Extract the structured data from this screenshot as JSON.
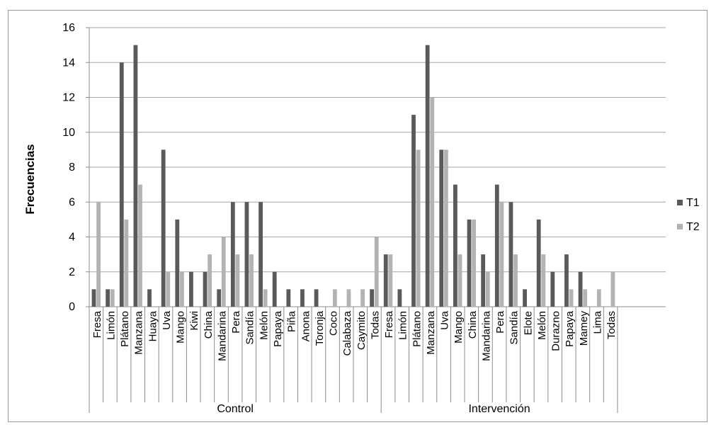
{
  "chart_data": {
    "type": "bar",
    "title": "",
    "xlabel": "",
    "ylabel": "Frecuencias",
    "ylim": [
      0,
      16
    ],
    "yticks": [
      0,
      2,
      4,
      6,
      8,
      10,
      12,
      14,
      16
    ],
    "grid": true,
    "legend_position": "right",
    "colors": {
      "T1": "#5a5a5a",
      "T2": "#b3b3b3"
    },
    "groups": [
      {
        "name": "Control",
        "categories": [
          "Fresa",
          "Limón",
          "Plátano",
          "Manzana",
          "Huaya",
          "Uva",
          "Mango",
          "Kiwi",
          "China",
          "Mandarina",
          "Pera",
          "Sandía",
          "Melón",
          "Papaya",
          "Piña",
          "Anona",
          "Toronja",
          "Coco",
          "Calabaza",
          "Caymito",
          "Todas"
        ],
        "series": [
          {
            "name": "T1",
            "values": [
              1,
              1,
              14,
              15,
              1,
              9,
              5,
              2,
              2,
              1,
              6,
              6,
              6,
              2,
              1,
              1,
              1,
              0,
              0,
              0,
              1
            ]
          },
          {
            "name": "T2",
            "values": [
              6,
              1,
              5,
              7,
              0,
              2,
              2,
              0,
              3,
              4,
              3,
              3,
              1,
              0,
              0,
              0,
              0,
              1,
              1,
              1,
              4
            ]
          }
        ]
      },
      {
        "name": "Intervención",
        "categories": [
          "Fresa",
          "Limón",
          "Plátano",
          "Manzana",
          "Uva",
          "Mango",
          "China",
          "Mandarina",
          "Pera",
          "Sandía",
          "Elote",
          "Melón",
          "Durazno",
          "Papaya",
          "Mamey",
          "Lima",
          "Todas"
        ],
        "series": [
          {
            "name": "T1",
            "values": [
              3,
              1,
              11,
              15,
              9,
              7,
              5,
              3,
              7,
              6,
              1,
              5,
              2,
              3,
              2,
              0,
              0
            ]
          },
          {
            "name": "T2",
            "values": [
              3,
              0,
              9,
              12,
              9,
              3,
              5,
              2,
              6,
              3,
              0,
              3,
              0,
              1,
              1,
              1,
              2
            ]
          }
        ]
      }
    ]
  }
}
